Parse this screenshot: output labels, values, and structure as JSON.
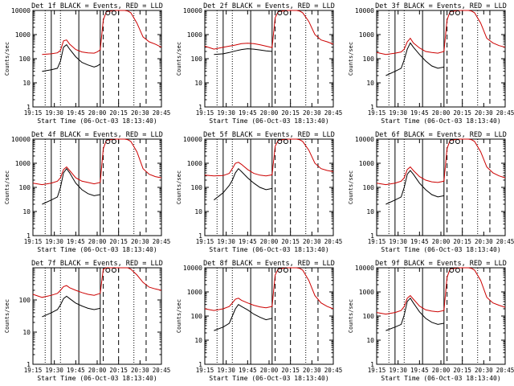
{
  "colors": {
    "events": "#000000",
    "lld": "#cc0000",
    "background": "#ffffff"
  },
  "chart_data": [
    {
      "type": "line",
      "title": "Det 1f BLACK = Events, RED = LLD",
      "xlabel": "Start Time (06-Oct-03 18:13:40)",
      "ylabel": "Counts/sec",
      "xlim": [
        0,
        42
      ],
      "ylim": [
        1,
        10000
      ],
      "yscale": "log",
      "x_ticks": [
        "19:15",
        "19:30",
        "19:45",
        "20:00",
        "20:15",
        "20:30",
        "20:45"
      ],
      "y_ticks": [
        "1",
        "10",
        "100",
        "1000",
        "10000"
      ],
      "series": [
        {
          "name": "Events",
          "x": [
            3,
            6,
            8,
            9,
            10,
            11,
            12,
            14,
            16,
            18,
            20,
            21,
            22
          ],
          "y": [
            30,
            35,
            40,
            80,
            300,
            380,
            250,
            120,
            70,
            55,
            45,
            50,
            60
          ]
        },
        {
          "name": "LLD",
          "x": [
            3,
            6,
            8,
            9,
            10,
            11,
            12,
            14,
            16,
            18,
            20,
            21,
            22,
            23,
            24,
            27,
            30,
            31,
            32,
            34,
            36,
            38,
            40,
            42
          ],
          "y": [
            150,
            160,
            175,
            220,
            550,
            600,
            400,
            240,
            190,
            175,
            170,
            190,
            230,
            4000,
            9000,
            10000,
            10000,
            9500,
            8000,
            3000,
            800,
            500,
            400,
            300
          ]
        }
      ]
    },
    {
      "type": "line",
      "title": "Det 2f BLACK = Events, RED = LLD",
      "xlabel": "Start Time (06-Oct-03 18:13:40)",
      "ylabel": "Counts/sec",
      "xlim": [
        0,
        42
      ],
      "ylim": [
        1,
        10000
      ],
      "yscale": "log",
      "x_ticks": [
        "19:15",
        "19:30",
        "19:45",
        "20:00",
        "20:15",
        "20:30",
        "20:45"
      ],
      "y_ticks": [
        "1",
        "10",
        "100",
        "1000",
        "10000"
      ],
      "series": [
        {
          "name": "Events",
          "x": [
            3,
            6,
            8,
            10,
            12,
            14,
            16,
            18,
            20,
            22
          ],
          "y": [
            150,
            160,
            180,
            210,
            240,
            260,
            250,
            230,
            210,
            200
          ]
        },
        {
          "name": "LLD",
          "x": [
            0,
            3,
            6,
            8,
            10,
            12,
            14,
            16,
            18,
            20,
            22,
            23,
            24,
            27,
            30,
            31,
            32,
            34,
            36,
            38,
            40,
            42
          ],
          "y": [
            330,
            250,
            300,
            330,
            370,
            420,
            440,
            420,
            380,
            330,
            290,
            5000,
            9000,
            10000,
            10000,
            9500,
            8000,
            3500,
            1000,
            600,
            500,
            400
          ]
        }
      ]
    },
    {
      "type": "line",
      "title": "Det 3f BLACK = Events, RED = LLD",
      "xlabel": "Start Time (06-Oct-03 18:13:40)",
      "ylabel": "Counts/sec",
      "xlim": [
        0,
        42
      ],
      "ylim": [
        1,
        10000
      ],
      "yscale": "log",
      "x_ticks": [
        "19:15",
        "19:30",
        "19:45",
        "20:00",
        "20:15",
        "20:30",
        "20:45"
      ],
      "y_ticks": [
        "1",
        "10",
        "100",
        "1000",
        "10000"
      ],
      "series": [
        {
          "name": "Events",
          "x": [
            3,
            6,
            8,
            9,
            10,
            11,
            12,
            14,
            16,
            18,
            20,
            22
          ],
          "y": [
            20,
            30,
            40,
            90,
            250,
            450,
            300,
            150,
            80,
            50,
            40,
            45
          ]
        },
        {
          "name": "LLD",
          "x": [
            0,
            3,
            6,
            8,
            9,
            10,
            11,
            12,
            14,
            16,
            18,
            20,
            22,
            23,
            24,
            27,
            30,
            31,
            32,
            34,
            36,
            38,
            40,
            42
          ],
          "y": [
            180,
            150,
            170,
            190,
            250,
            500,
            700,
            450,
            280,
            200,
            180,
            170,
            200,
            4000,
            9000,
            10000,
            10000,
            9500,
            8000,
            3000,
            700,
            450,
            350,
            300
          ]
        }
      ]
    },
    {
      "type": "line",
      "title": "Det 4f BLACK = Events, RED = LLD",
      "xlabel": "Start Time (06-Oct-03 18:13:40)",
      "ylabel": "Counts/sec",
      "xlim": [
        0,
        42
      ],
      "ylim": [
        1,
        10000
      ],
      "yscale": "log",
      "x_ticks": [
        "19:15",
        "19:30",
        "19:45",
        "20:00",
        "20:15",
        "20:30",
        "20:45"
      ],
      "y_ticks": [
        "1",
        "10",
        "100",
        "1000",
        "10000"
      ],
      "series": [
        {
          "name": "Events",
          "x": [
            3,
            6,
            8,
            9,
            10,
            11,
            12,
            14,
            16,
            18,
            20,
            22
          ],
          "y": [
            20,
            30,
            40,
            100,
            400,
            600,
            400,
            150,
            80,
            55,
            45,
            50
          ]
        },
        {
          "name": "LLD",
          "x": [
            0,
            3,
            6,
            8,
            9,
            10,
            11,
            12,
            14,
            16,
            18,
            20,
            22,
            23,
            24,
            27,
            30,
            31,
            32,
            34,
            36,
            38,
            40,
            42
          ],
          "y": [
            150,
            130,
            150,
            180,
            250,
            550,
            700,
            500,
            250,
            180,
            160,
            140,
            160,
            4000,
            9000,
            10000,
            10000,
            9500,
            8000,
            3000,
            600,
            350,
            280,
            250
          ]
        }
      ]
    },
    {
      "type": "line",
      "title": "Det 5f BLACK = Events, RED = LLD",
      "xlabel": "Start Time (06-Oct-03 18:13:40)",
      "ylabel": "Counts/sec",
      "xlim": [
        0,
        42
      ],
      "ylim": [
        1,
        10000
      ],
      "yscale": "log",
      "x_ticks": [
        "19:15",
        "19:30",
        "19:45",
        "20:00",
        "20:15",
        "20:30",
        "20:45"
      ],
      "y_ticks": [
        "1",
        "10",
        "100",
        "1000",
        "10000"
      ],
      "series": [
        {
          "name": "Events",
          "x": [
            3,
            6,
            8,
            9,
            10,
            11,
            12,
            14,
            16,
            18,
            20,
            22
          ],
          "y": [
            30,
            60,
            120,
            200,
            400,
            600,
            450,
            250,
            150,
            100,
            80,
            90
          ]
        },
        {
          "name": "LLD",
          "x": [
            0,
            3,
            6,
            8,
            9,
            10,
            11,
            12,
            14,
            16,
            18,
            20,
            22,
            23,
            24,
            27,
            30,
            31,
            32,
            34,
            36,
            38,
            40,
            42
          ],
          "y": [
            320,
            300,
            310,
            380,
            600,
            1000,
            1100,
            900,
            550,
            380,
            320,
            300,
            330,
            5000,
            9000,
            10000,
            10000,
            9500,
            8000,
            3500,
            1000,
            600,
            500,
            450
          ]
        }
      ]
    },
    {
      "type": "line",
      "title": "Det 6f BLACK = Events, RED = LLD",
      "xlabel": "Start Time (06-Oct-03 18:13:40)",
      "ylabel": "Counts/sec",
      "xlim": [
        0,
        42
      ],
      "ylim": [
        1,
        10000
      ],
      "yscale": "log",
      "x_ticks": [
        "19:15",
        "19:30",
        "19:45",
        "20:00",
        "20:15",
        "20:30",
        "20:45"
      ],
      "y_ticks": [
        "1",
        "10",
        "100",
        "1000",
        "10000"
      ],
      "series": [
        {
          "name": "Events",
          "x": [
            3,
            6,
            8,
            9,
            10,
            11,
            12,
            14,
            16,
            18,
            20,
            22
          ],
          "y": [
            20,
            30,
            40,
            100,
            350,
            500,
            350,
            150,
            80,
            50,
            40,
            45
          ]
        },
        {
          "name": "LLD",
          "x": [
            0,
            3,
            6,
            8,
            9,
            10,
            11,
            12,
            14,
            16,
            18,
            20,
            22,
            23,
            24,
            27,
            30,
            31,
            32,
            34,
            36,
            38,
            40,
            42
          ],
          "y": [
            150,
            130,
            150,
            180,
            250,
            550,
            700,
            500,
            280,
            200,
            170,
            160,
            180,
            4000,
            9000,
            10000,
            10000,
            9500,
            8000,
            3000,
            700,
            400,
            300,
            250
          ]
        }
      ]
    },
    {
      "type": "line",
      "title": "Det 7f BLACK = Events, RED = LLD",
      "xlabel": "Start Time (06-Oct-03 18:13:40)",
      "ylabel": "Counts/sec",
      "xlim": [
        0,
        42
      ],
      "ylim": [
        1,
        1000
      ],
      "yscale": "log",
      "x_ticks": [
        "19:15",
        "19:30",
        "19:45",
        "20:00",
        "20:15",
        "20:30",
        "20:45"
      ],
      "y_ticks": [
        "1",
        "10",
        "100"
      ],
      "series": [
        {
          "name": "Events",
          "x": [
            3,
            6,
            8,
            9,
            10,
            11,
            12,
            14,
            16,
            18,
            20,
            22
          ],
          "y": [
            30,
            40,
            50,
            70,
            110,
            130,
            110,
            80,
            65,
            55,
            50,
            55
          ]
        },
        {
          "name": "LLD",
          "x": [
            0,
            3,
            6,
            8,
            9,
            10,
            11,
            12,
            14,
            16,
            18,
            20,
            22,
            23,
            24,
            27,
            30,
            31,
            32,
            34,
            36,
            38,
            40,
            42
          ],
          "y": [
            150,
            120,
            140,
            160,
            200,
            260,
            280,
            240,
            200,
            170,
            150,
            140,
            160,
            900,
            1000,
            1000,
            1000,
            1000,
            900,
            600,
            350,
            250,
            220,
            200
          ]
        }
      ]
    },
    {
      "type": "line",
      "title": "Det 8f BLACK = Events, RED = LLD",
      "xlabel": "Start Time (06-Oct-03 18:13:40)",
      "ylabel": "Counts/sec",
      "xlim": [
        0,
        42
      ],
      "ylim": [
        1,
        10000
      ],
      "yscale": "log",
      "x_ticks": [
        "19:15",
        "19:30",
        "19:45",
        "20:00",
        "20:15",
        "20:30",
        "20:45"
      ],
      "y_ticks": [
        "1",
        "10",
        "100",
        "1000",
        "10000"
      ],
      "series": [
        {
          "name": "Events",
          "x": [
            3,
            6,
            8,
            9,
            10,
            11,
            12,
            14,
            16,
            18,
            20,
            22
          ],
          "y": [
            25,
            35,
            50,
            100,
            200,
            300,
            250,
            180,
            120,
            90,
            70,
            80
          ]
        },
        {
          "name": "LLD",
          "x": [
            0,
            3,
            6,
            8,
            9,
            10,
            11,
            12,
            14,
            16,
            18,
            20,
            22,
            23,
            24,
            27,
            30,
            31,
            32,
            34,
            36,
            38,
            40,
            42
          ],
          "y": [
            200,
            170,
            200,
            250,
            350,
            500,
            550,
            450,
            350,
            280,
            240,
            220,
            250,
            5000,
            9000,
            10000,
            10000,
            9500,
            8000,
            3000,
            700,
            350,
            250,
            200
          ]
        }
      ]
    },
    {
      "type": "line",
      "title": "Det 9f BLACK = Events, RED = LLD",
      "xlabel": "Start Time (06-Oct-03 18:13:40)",
      "ylabel": "Counts/sec",
      "xlim": [
        0,
        42
      ],
      "ylim": [
        1,
        10000
      ],
      "yscale": "log",
      "x_ticks": [
        "19:15",
        "19:30",
        "19:45",
        "20:00",
        "20:15",
        "20:30",
        "20:45"
      ],
      "y_ticks": [
        "1",
        "10",
        "100",
        "1000",
        "10000"
      ],
      "series": [
        {
          "name": "Events",
          "x": [
            3,
            6,
            8,
            9,
            10,
            11,
            12,
            14,
            16,
            18,
            20,
            22
          ],
          "y": [
            25,
            35,
            45,
            110,
            400,
            550,
            350,
            150,
            80,
            55,
            45,
            50
          ]
        },
        {
          "name": "LLD",
          "x": [
            0,
            3,
            6,
            8,
            9,
            10,
            11,
            12,
            14,
            16,
            18,
            20,
            22,
            23,
            24,
            27,
            30,
            31,
            32,
            34,
            36,
            38,
            40,
            42
          ],
          "y": [
            140,
            120,
            140,
            170,
            250,
            550,
            700,
            500,
            260,
            180,
            160,
            150,
            170,
            4000,
            9000,
            10000,
            10000,
            9500,
            8000,
            3000,
            600,
            350,
            280,
            230
          ]
        }
      ]
    }
  ]
}
